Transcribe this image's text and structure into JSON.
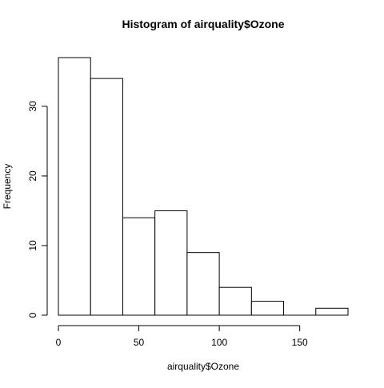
{
  "chart_data": {
    "type": "bar",
    "title": "Histogram of airquality$Ozone",
    "xlabel": "airquality$Ozone",
    "ylabel": "Frequency",
    "bins": [
      {
        "start": 0,
        "end": 20,
        "count": 37
      },
      {
        "start": 20,
        "end": 40,
        "count": 34
      },
      {
        "start": 40,
        "end": 60,
        "count": 14
      },
      {
        "start": 60,
        "end": 80,
        "count": 15
      },
      {
        "start": 80,
        "end": 100,
        "count": 9
      },
      {
        "start": 100,
        "end": 120,
        "count": 4
      },
      {
        "start": 120,
        "end": 140,
        "count": 2
      },
      {
        "start": 140,
        "end": 160,
        "count": 0
      },
      {
        "start": 160,
        "end": 180,
        "count": 1
      }
    ],
    "xticks": [
      0,
      50,
      100,
      150
    ],
    "yticks": [
      0,
      10,
      20,
      30
    ],
    "xlim": [
      0,
      180
    ],
    "ylim": [
      0,
      37
    ],
    "grid": false,
    "bar_fill": "#ffffff",
    "bar_stroke": "#000000"
  }
}
